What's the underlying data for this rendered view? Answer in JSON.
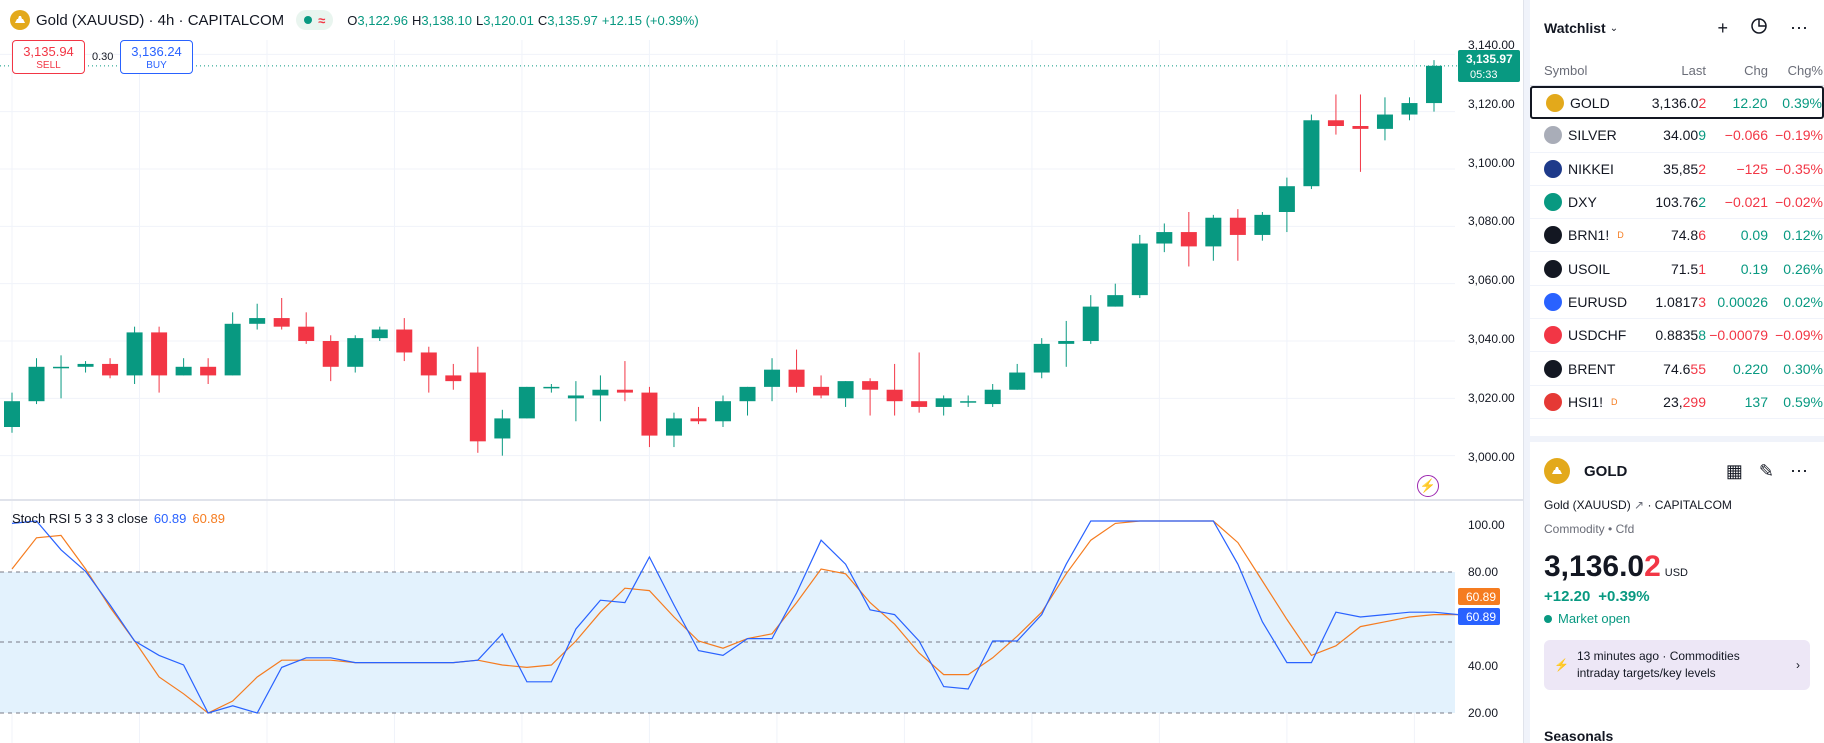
{
  "header": {
    "title": "Gold (XAUUSD) · 4h · CAPITALCOM",
    "o_label": "O",
    "o": "3,122.96",
    "h_label": "H",
    "h": "3,138.10",
    "l_label": "L",
    "l": "3,120.01",
    "c_label": "C",
    "c": "3,135.97",
    "change": "+12.15 (+0.39%)"
  },
  "trade": {
    "sell_price": "3,135.94",
    "sell_label": "SELL",
    "spread": "0.30",
    "buy_price": "3,136.24",
    "buy_label": "BUY"
  },
  "price_axis": {
    "ticks": [
      "3,140.00",
      "3,120.00",
      "3,100.00",
      "3,080.00",
      "3,060.00",
      "3,040.00",
      "3,020.00",
      "3,000.00"
    ],
    "current_price": "3,135.97",
    "countdown": "05:33"
  },
  "rsi": {
    "label": "Stoch RSI 5 3 3 3 close",
    "k": "60.89",
    "d": "60.89",
    "ticks": [
      "100.00",
      "80.00",
      "40.00",
      "20.00"
    ],
    "k_badge": "60.89",
    "d_badge": "60.89"
  },
  "colors": {
    "up": "#089981",
    "down": "#f23645",
    "k_line": "#2962ff",
    "d_line": "#f57c20",
    "band": "#e3f2fd"
  },
  "chart_data": {
    "type": "candlestick",
    "ylim": [
      2995,
      3145
    ],
    "candles": [
      {
        "o": 3010,
        "h": 3022,
        "l": 3008,
        "c": 3019
      },
      {
        "o": 3019,
        "h": 3034,
        "l": 3018,
        "c": 3031
      },
      {
        "o": 3031,
        "h": 3035,
        "l": 3020,
        "c": 3031
      },
      {
        "o": 3031,
        "h": 3033,
        "l": 3029,
        "c": 3032
      },
      {
        "o": 3032,
        "h": 3034,
        "l": 3027,
        "c": 3028
      },
      {
        "o": 3028,
        "h": 3045,
        "l": 3025,
        "c": 3043
      },
      {
        "o": 3043,
        "h": 3045,
        "l": 3022,
        "c": 3028
      },
      {
        "o": 3028,
        "h": 3034,
        "l": 3028,
        "c": 3031
      },
      {
        "o": 3031,
        "h": 3034,
        "l": 3025,
        "c": 3028
      },
      {
        "o": 3028,
        "h": 3050,
        "l": 3028,
        "c": 3046
      },
      {
        "o": 3046,
        "h": 3053,
        "l": 3044,
        "c": 3048
      },
      {
        "o": 3048,
        "h": 3055,
        "l": 3044,
        "c": 3045
      },
      {
        "o": 3045,
        "h": 3050,
        "l": 3039,
        "c": 3040
      },
      {
        "o": 3040,
        "h": 3042,
        "l": 3026,
        "c": 3031
      },
      {
        "o": 3031,
        "h": 3042,
        "l": 3029,
        "c": 3041
      },
      {
        "o": 3041,
        "h": 3045,
        "l": 3040,
        "c": 3044
      },
      {
        "o": 3044,
        "h": 3048,
        "l": 3033,
        "c": 3036
      },
      {
        "o": 3036,
        "h": 3038,
        "l": 3022,
        "c": 3028
      },
      {
        "o": 3028,
        "h": 3032,
        "l": 3023,
        "c": 3026
      },
      {
        "o": 3029,
        "h": 3038,
        "l": 3001,
        "c": 3005
      },
      {
        "o": 3006,
        "h": 3016,
        "l": 3000,
        "c": 3013
      },
      {
        "o": 3013,
        "h": 3024,
        "l": 3013,
        "c": 3024
      },
      {
        "o": 3024,
        "h": 3025,
        "l": 3022,
        "c": 3024
      },
      {
        "o": 3020,
        "h": 3026,
        "l": 3012,
        "c": 3021
      },
      {
        "o": 3021,
        "h": 3028,
        "l": 3012,
        "c": 3023
      },
      {
        "o": 3023,
        "h": 3033,
        "l": 3019,
        "c": 3022
      },
      {
        "o": 3022,
        "h": 3024,
        "l": 3003,
        "c": 3007
      },
      {
        "o": 3007,
        "h": 3015,
        "l": 3003,
        "c": 3013
      },
      {
        "o": 3013,
        "h": 3017,
        "l": 3011,
        "c": 3012
      },
      {
        "o": 3012,
        "h": 3021,
        "l": 3010,
        "c": 3019
      },
      {
        "o": 3019,
        "h": 3024,
        "l": 3014,
        "c": 3024
      },
      {
        "o": 3024,
        "h": 3034,
        "l": 3019,
        "c": 3030
      },
      {
        "o": 3030,
        "h": 3037,
        "l": 3022,
        "c": 3024
      },
      {
        "o": 3024,
        "h": 3028,
        "l": 3020,
        "c": 3021
      },
      {
        "o": 3020,
        "h": 3026,
        "l": 3017,
        "c": 3026
      },
      {
        "o": 3026,
        "h": 3027,
        "l": 3014,
        "c": 3023
      },
      {
        "o": 3023,
        "h": 3032,
        "l": 3014,
        "c": 3019
      },
      {
        "o": 3019,
        "h": 3036,
        "l": 3015,
        "c": 3017
      },
      {
        "o": 3017,
        "h": 3021,
        "l": 3014,
        "c": 3020
      },
      {
        "o": 3019,
        "h": 3021,
        "l": 3017,
        "c": 3019
      },
      {
        "o": 3018,
        "h": 3025,
        "l": 3017,
        "c": 3023
      },
      {
        "o": 3023,
        "h": 3032,
        "l": 3023,
        "c": 3029
      },
      {
        "o": 3029,
        "h": 3041,
        "l": 3027,
        "c": 3039
      },
      {
        "o": 3039,
        "h": 3047,
        "l": 3031,
        "c": 3040
      },
      {
        "o": 3040,
        "h": 3056,
        "l": 3039,
        "c": 3052
      },
      {
        "o": 3052,
        "h": 3060,
        "l": 3052,
        "c": 3056
      },
      {
        "o": 3056,
        "h": 3077,
        "l": 3055,
        "c": 3074
      },
      {
        "o": 3074,
        "h": 3081,
        "l": 3071,
        "c": 3078
      },
      {
        "o": 3078,
        "h": 3085,
        "l": 3066,
        "c": 3073
      },
      {
        "o": 3073,
        "h": 3084,
        "l": 3068,
        "c": 3083
      },
      {
        "o": 3083,
        "h": 3086,
        "l": 3068,
        "c": 3077
      },
      {
        "o": 3077,
        "h": 3085,
        "l": 3075,
        "c": 3084
      },
      {
        "o": 3085,
        "h": 3097,
        "l": 3078,
        "c": 3094
      },
      {
        "o": 3094,
        "h": 3119,
        "l": 3093,
        "c": 3117
      },
      {
        "o": 3117,
        "h": 3126,
        "l": 3112,
        "c": 3115
      },
      {
        "o": 3115,
        "h": 3126,
        "l": 3099,
        "c": 3114
      },
      {
        "o": 3114,
        "h": 3125,
        "l": 3110,
        "c": 3119
      },
      {
        "o": 3119,
        "h": 3125,
        "l": 3117,
        "c": 3123
      },
      {
        "o": 3123,
        "h": 3138,
        "l": 3120,
        "c": 3136
      }
    ],
    "stoch_ylim": [
      15,
      105
    ],
    "stoch_k": [
      99,
      100,
      88,
      79,
      65,
      50,
      44,
      40,
      20,
      23,
      20,
      39,
      43,
      43,
      41,
      41,
      41,
      41,
      41,
      42,
      53,
      33,
      33,
      55,
      67,
      66,
      85,
      65,
      46,
      44,
      51,
      51,
      70,
      92,
      82,
      63,
      61,
      50,
      31,
      30,
      50,
      50,
      61,
      82,
      100,
      100,
      100,
      100,
      100,
      100,
      82,
      58,
      41,
      41,
      62,
      60,
      61,
      62,
      62,
      61
    ],
    "stoch_d": [
      80,
      93,
      94,
      80,
      64,
      50,
      35,
      28,
      20,
      25,
      35,
      42,
      42,
      42,
      41,
      41,
      41,
      41,
      41,
      42,
      40,
      39,
      40,
      50,
      62,
      72,
      71,
      60,
      50,
      47,
      51,
      53,
      66,
      80,
      78,
      66,
      57,
      45,
      36,
      36,
      43,
      52,
      62,
      78,
      92,
      99,
      100,
      100,
      100,
      100,
      91,
      75,
      59,
      44,
      48,
      56,
      58,
      60,
      61,
      61
    ]
  },
  "watchlist": {
    "title": "Watchlist",
    "columns": [
      "Symbol",
      "Last",
      "Chg",
      "Chg%"
    ],
    "rows": [
      {
        "symbol": "GOLD",
        "last_main": "3,136.0",
        "last_tail": "2",
        "last_tail_dir": "neg",
        "chg": "12.20",
        "chgp": "0.39%",
        "dir": "pos",
        "icon": "gold-icon",
        "icon_bg": "#e3a91b",
        "badge": ""
      },
      {
        "symbol": "SILVER",
        "last_main": "34.00",
        "last_tail": "9",
        "last_tail_dir": "pos",
        "chg": "−0.066",
        "chgp": "−0.19%",
        "dir": "neg",
        "icon": "silver-icon",
        "icon_bg": "#a9adb8",
        "badge": ""
      },
      {
        "symbol": "NIKKEI",
        "last_main": "35,85",
        "last_tail": "2",
        "last_tail_dir": "neg",
        "chg": "−125",
        "chgp": "−0.35%",
        "dir": "neg",
        "icon": "nikkei-icon",
        "icon_bg": "#1e3a8a",
        "badge": ""
      },
      {
        "symbol": "DXY",
        "last_main": "103.76",
        "last_tail": "2",
        "last_tail_dir": "pos",
        "chg": "−0.021",
        "chgp": "−0.02%",
        "dir": "neg",
        "icon": "dollar-icon",
        "icon_bg": "#089981",
        "badge": ""
      },
      {
        "symbol": "BRN1!",
        "last_main": "74.8",
        "last_tail": "6",
        "last_tail_dir": "neg",
        "chg": "0.09",
        "chgp": "0.12%",
        "dir": "pos",
        "icon": "oil-drop-icon",
        "icon_bg": "#131722",
        "badge": "D"
      },
      {
        "symbol": "USOIL",
        "last_main": "71.5",
        "last_tail": "1",
        "last_tail_dir": "neg",
        "chg": "0.19",
        "chgp": "0.26%",
        "dir": "pos",
        "icon": "oil-drop-icon",
        "icon_bg": "#131722",
        "badge": ""
      },
      {
        "symbol": "EURUSD",
        "last_main": "1.0817",
        "last_tail": "3",
        "last_tail_dir": "neg",
        "chg": "0.00026",
        "chgp": "0.02%",
        "dir": "pos",
        "icon": "eu-flag-icon",
        "icon_bg": "#2962ff",
        "badge": ""
      },
      {
        "symbol": "USDCHF",
        "last_main": "0.8835",
        "last_tail": "8",
        "last_tail_dir": "pos",
        "chg": "−0.00079",
        "chgp": "−0.09%",
        "dir": "neg",
        "icon": "us-flag-icon",
        "icon_bg": "#f23645",
        "badge": ""
      },
      {
        "symbol": "BRENT",
        "last_main": "74.6",
        "last_tail": "55",
        "last_tail_dir": "neg",
        "chg": "0.220",
        "chgp": "0.30%",
        "dir": "pos",
        "icon": "oil-drop-icon",
        "icon_bg": "#131722",
        "badge": ""
      },
      {
        "symbol": "HSI1!",
        "last_main": "23,",
        "last_tail": "299",
        "last_tail_dir": "neg",
        "chg": "137",
        "chgp": "0.59%",
        "dir": "pos",
        "icon": "hsi-icon",
        "icon_bg": "#e53935",
        "badge": "D"
      }
    ]
  },
  "details": {
    "symbol": "GOLD",
    "name": "Gold (XAUUSD)",
    "exchange": "CAPITALCOM",
    "category": "Commodity",
    "type": "Cfd",
    "price_main": "3,136.0",
    "price_tail": "2",
    "currency": "USD",
    "change": "+12.20",
    "change_pct": "+0.39%",
    "market_status": "Market open",
    "news_time": "13 minutes ago",
    "news_category": "Commodities",
    "news_title": "intraday targets/key levels",
    "seasonals": "Seasonals"
  }
}
